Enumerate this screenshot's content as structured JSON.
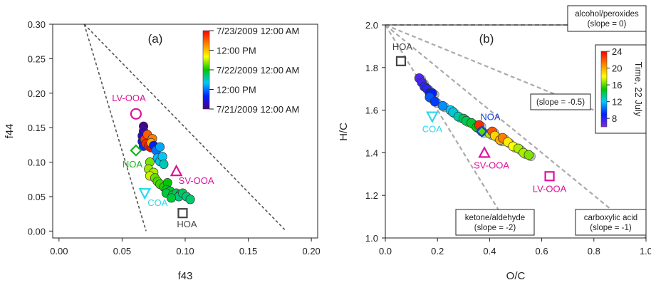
{
  "chart_data": [
    {
      "type": "scatter",
      "panel_label": "(a)",
      "xlabel": "f43",
      "ylabel": "f44",
      "xlim": [
        -0.005,
        0.205
      ],
      "ylim": [
        -0.01,
        0.3
      ],
      "xticks": [
        "0.00",
        "0.05",
        "0.10",
        "0.15",
        "0.20"
      ],
      "yticks": [
        "0.00",
        "0.05",
        "0.10",
        "0.15",
        "0.20",
        "0.25",
        "0.30"
      ],
      "grid": false,
      "triangle": [
        [
          0.02,
          0.3
        ],
        [
          0.069,
          0.0
        ],
        [
          0.18,
          0.0
        ]
      ],
      "colorbar": {
        "labels": [
          "7/23/2009 12:00 AM",
          "12:00 PM",
          "7/22/2009 12:00 AM",
          "12:00 PM",
          "7/21/2009 12:00 AM"
        ],
        "colors": [
          "#ff0000",
          "#ff8000",
          "#ffff00",
          "#00c800",
          "#00c8ff",
          "#0020ff",
          "#4b0082"
        ]
      },
      "factor_points": [
        {
          "name": "LV-OOA",
          "x": 0.061,
          "y": 0.17,
          "marker": "circle",
          "color": "#e0119d"
        },
        {
          "name": "NOA",
          "x": 0.061,
          "y": 0.117,
          "marker": "diamond",
          "color": "#19b219"
        },
        {
          "name": "SV-OOA",
          "x": 0.093,
          "y": 0.087,
          "marker": "triangle-up",
          "color": "#e0119d"
        },
        {
          "name": "COA",
          "x": 0.068,
          "y": 0.055,
          "marker": "triangle-down",
          "color": "#29d9f0"
        },
        {
          "name": "HOA",
          "x": 0.098,
          "y": 0.026,
          "marker": "square",
          "color": "#444444"
        }
      ],
      "series": [
        {
          "x": 0.067,
          "y": 0.152,
          "t": 0.02
        },
        {
          "x": 0.067,
          "y": 0.145,
          "t": 0.04
        },
        {
          "x": 0.066,
          "y": 0.138,
          "t": 0.08
        },
        {
          "x": 0.066,
          "y": 0.13,
          "t": 0.12
        },
        {
          "x": 0.067,
          "y": 0.123,
          "t": 0.18
        },
        {
          "x": 0.068,
          "y": 0.133,
          "t": 0.92
        },
        {
          "x": 0.069,
          "y": 0.127,
          "t": 0.95
        },
        {
          "x": 0.071,
          "y": 0.123,
          "t": 0.97
        },
        {
          "x": 0.073,
          "y": 0.121,
          "t": 0.99
        },
        {
          "x": 0.07,
          "y": 0.14,
          "t": 0.88
        },
        {
          "x": 0.074,
          "y": 0.134,
          "t": 0.84
        },
        {
          "x": 0.073,
          "y": 0.128,
          "t": 0.78
        },
        {
          "x": 0.075,
          "y": 0.124,
          "t": 0.16
        },
        {
          "x": 0.077,
          "y": 0.117,
          "t": 0.25
        },
        {
          "x": 0.08,
          "y": 0.122,
          "t": 0.3
        },
        {
          "x": 0.078,
          "y": 0.106,
          "t": 0.32
        },
        {
          "x": 0.08,
          "y": 0.101,
          "t": 0.36
        },
        {
          "x": 0.082,
          "y": 0.108,
          "t": 0.34
        },
        {
          "x": 0.083,
          "y": 0.097,
          "t": 0.38
        },
        {
          "x": 0.072,
          "y": 0.1,
          "t": 0.58
        },
        {
          "x": 0.071,
          "y": 0.09,
          "t": 0.6
        },
        {
          "x": 0.075,
          "y": 0.085,
          "t": 0.61
        },
        {
          "x": 0.072,
          "y": 0.08,
          "t": 0.63
        },
        {
          "x": 0.076,
          "y": 0.077,
          "t": 0.57
        },
        {
          "x": 0.078,
          "y": 0.072,
          "t": 0.55
        },
        {
          "x": 0.08,
          "y": 0.068,
          "t": 0.54
        },
        {
          "x": 0.083,
          "y": 0.064,
          "t": 0.52
        },
        {
          "x": 0.086,
          "y": 0.07,
          "t": 0.5
        },
        {
          "x": 0.085,
          "y": 0.06,
          "t": 0.48
        },
        {
          "x": 0.088,
          "y": 0.058,
          "t": 0.47
        },
        {
          "x": 0.085,
          "y": 0.055,
          "t": 0.46
        },
        {
          "x": 0.09,
          "y": 0.052,
          "t": 0.45
        },
        {
          "x": 0.093,
          "y": 0.055,
          "t": 0.44
        },
        {
          "x": 0.096,
          "y": 0.053,
          "t": 0.43
        },
        {
          "x": 0.095,
          "y": 0.05,
          "t": 0.42
        },
        {
          "x": 0.098,
          "y": 0.055,
          "t": 0.44
        },
        {
          "x": 0.101,
          "y": 0.05,
          "t": 0.42
        },
        {
          "x": 0.104,
          "y": 0.046,
          "t": 0.43
        },
        {
          "x": 0.089,
          "y": 0.048,
          "t": 0.46
        }
      ]
    },
    {
      "type": "scatter",
      "panel_label": "(b)",
      "xlabel": "O/C",
      "ylabel": "H/C",
      "xlim": [
        0.0,
        1.0
      ],
      "ylim": [
        1.0,
        2.0
      ],
      "xticks": [
        "0.0",
        "0.2",
        "0.4",
        "0.6",
        "0.8",
        "1.0"
      ],
      "yticks": [
        "1.0",
        "1.2",
        "1.4",
        "1.6",
        "1.8",
        "2.0"
      ],
      "grid": false,
      "reference_lines": [
        {
          "slope": 0,
          "end": [
            1.0,
            2.0
          ]
        },
        {
          "slope": -0.5,
          "end": [
            1.0,
            1.5
          ]
        },
        {
          "slope": -1,
          "end": [
            1.0,
            1.0
          ]
        },
        {
          "slope": -2,
          "end": [
            0.5,
            1.0
          ]
        }
      ],
      "line_labels": [
        {
          "line1": "alcohol/peroxides",
          "line2": "(slope = 0)",
          "anchor": "top-right"
        },
        {
          "line1": "(slope = -0.5)",
          "line2": "",
          "anchor": "right"
        },
        {
          "line1": "ketone/aldehyde",
          "line2": "(slope = -2)",
          "anchor": "bottom-center"
        },
        {
          "line1": "carboxylic acid",
          "line2": "(slope = -1)",
          "anchor": "bottom-right"
        }
      ],
      "colorbar": {
        "label": "Time, 22 July",
        "ticks": [
          "24",
          "20",
          "16",
          "12",
          "8"
        ],
        "range": [
          6,
          24
        ],
        "colors": [
          "#ff0000",
          "#ff8000",
          "#ffff00",
          "#00c800",
          "#00c8ff",
          "#0020ff",
          "#7d2be0"
        ]
      },
      "factor_points": [
        {
          "name": "HOA",
          "x": 0.06,
          "y": 1.83,
          "marker": "square",
          "color": "#444444"
        },
        {
          "name": "NOA",
          "x": 0.37,
          "y": 1.5,
          "marker": "diamond",
          "color": "#1a3cd8"
        },
        {
          "name": "COA",
          "x": 0.18,
          "y": 1.57,
          "marker": "triangle-down",
          "color": "#29d9f0"
        },
        {
          "name": "SV-OOA",
          "x": 0.38,
          "y": 1.4,
          "marker": "triangle-up",
          "color": "#e0119d"
        },
        {
          "name": "LV-OOA",
          "x": 0.63,
          "y": 1.29,
          "marker": "square",
          "color": "#e0119d"
        }
      ],
      "series": [
        {
          "x": 0.13,
          "y": 1.75,
          "t": 7
        },
        {
          "x": 0.14,
          "y": 1.73,
          "t": 7.5
        },
        {
          "x": 0.15,
          "y": 1.71,
          "t": 8
        },
        {
          "x": 0.16,
          "y": 1.7,
          "t": 8
        },
        {
          "x": 0.17,
          "y": 1.68,
          "t": 9
        },
        {
          "x": 0.18,
          "y": 1.68,
          "t": 9
        },
        {
          "x": 0.17,
          "y": 1.66,
          "t": 10
        },
        {
          "x": 0.19,
          "y": 1.64,
          "t": 9.5
        },
        {
          "x": 0.22,
          "y": 1.62,
          "t": 11
        },
        {
          "x": 0.25,
          "y": 1.6,
          "t": 12
        },
        {
          "x": 0.26,
          "y": 1.59,
          "t": 12.5
        },
        {
          "x": 0.28,
          "y": 1.57,
          "t": 13
        },
        {
          "x": 0.3,
          "y": 1.56,
          "t": 14
        },
        {
          "x": 0.31,
          "y": 1.55,
          "t": 14
        },
        {
          "x": 0.33,
          "y": 1.54,
          "t": 14.5
        },
        {
          "x": 0.35,
          "y": 1.52,
          "t": 15
        },
        {
          "x": 0.36,
          "y": 1.53,
          "t": 23
        },
        {
          "x": 0.37,
          "y": 1.5,
          "t": 16
        },
        {
          "x": 0.4,
          "y": 1.49,
          "t": 17
        },
        {
          "x": 0.41,
          "y": 1.5,
          "t": 22
        },
        {
          "x": 0.42,
          "y": 1.48,
          "t": 19
        },
        {
          "x": 0.44,
          "y": 1.46,
          "t": 20
        },
        {
          "x": 0.45,
          "y": 1.47,
          "t": 21
        },
        {
          "x": 0.47,
          "y": 1.45,
          "t": 18.5
        },
        {
          "x": 0.49,
          "y": 1.43,
          "t": 18
        },
        {
          "x": 0.51,
          "y": 1.42,
          "t": 17
        },
        {
          "x": 0.53,
          "y": 1.4,
          "t": 17
        },
        {
          "x": 0.55,
          "y": 1.39,
          "t": 16.5
        }
      ]
    }
  ]
}
